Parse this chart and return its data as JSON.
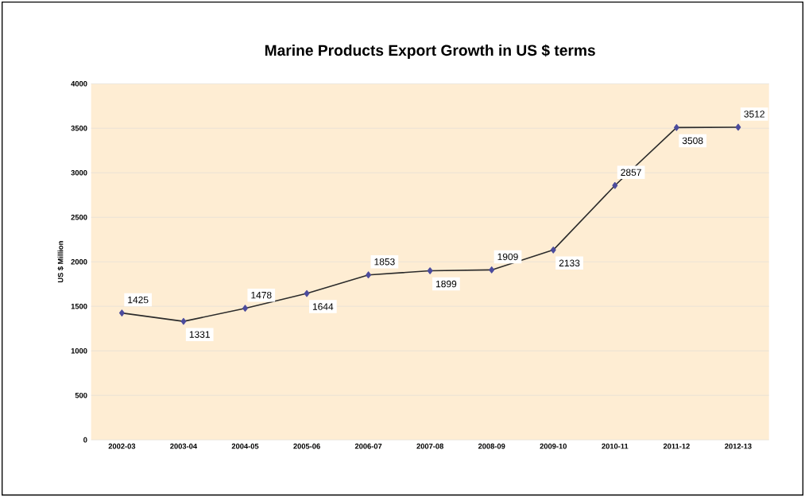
{
  "chart_data": {
    "type": "line",
    "title": "Marine Products Export Growth in US $ terms",
    "ylabel": "US $ Million",
    "categories": [
      "2002-03",
      "2003-04",
      "2004-05",
      "2005-06",
      "2006-07",
      "2007-08",
      "2008-09",
      "2009-10",
      "2010-11",
      "2011-12",
      "2012-13"
    ],
    "values": [
      1425,
      1331,
      1478,
      1644,
      1853,
      1899,
      1909,
      2133,
      2857,
      3508,
      3512
    ],
    "color": "#2b2b2b",
    "marker": "diamond",
    "line_style": "solid",
    "data_labels": true,
    "grid": "y",
    "ylim": [
      0,
      4000
    ],
    "yticks": [
      0,
      500,
      1000,
      1500,
      2000,
      2500,
      3000,
      3500,
      4000
    ]
  }
}
